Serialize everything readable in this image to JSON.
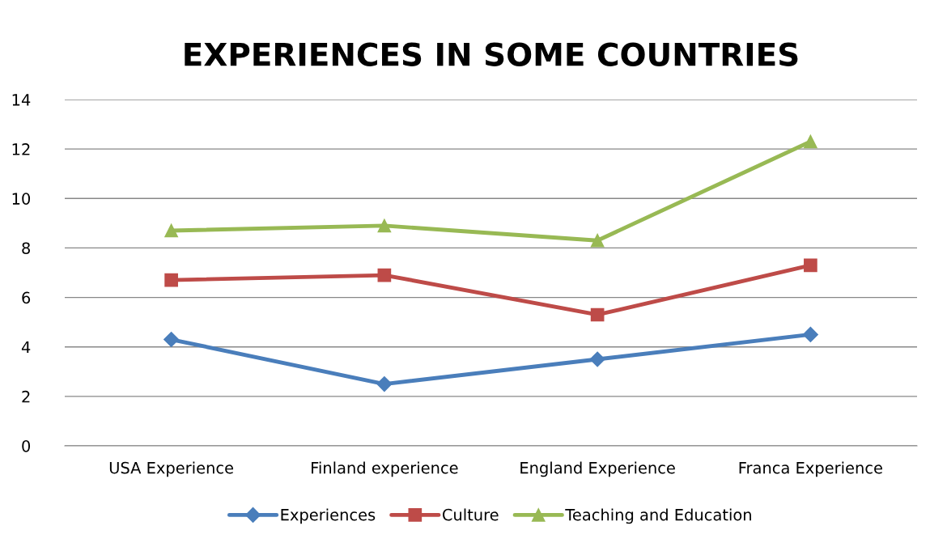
{
  "chart_data": {
    "type": "line",
    "title": "EXPERIENCES IN SOME COUNTRIES",
    "categories": [
      "USA Experience",
      "Finland experience",
      "England Experience",
      "Franca Experience"
    ],
    "series": [
      {
        "name": "Experiences",
        "color": "#4a7ebb",
        "marker": "diamond",
        "values": [
          4.3,
          2.5,
          3.5,
          4.5
        ]
      },
      {
        "name": "Culture",
        "color": "#be4b48",
        "marker": "square",
        "values": [
          6.7,
          6.9,
          5.3,
          7.3
        ]
      },
      {
        "name": "Teaching and Education",
        "color": "#98b954",
        "marker": "triangle",
        "values": [
          8.7,
          8.9,
          8.3,
          12.3
        ]
      }
    ],
    "ylim": [
      0,
      14
    ],
    "yticks": [
      0,
      2,
      4,
      6,
      8,
      10,
      12,
      14
    ],
    "grid": "y",
    "legend": "bottom",
    "line_style": "solid"
  }
}
